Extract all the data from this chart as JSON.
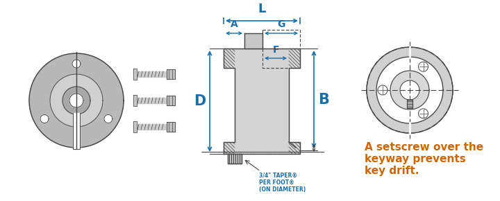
{
  "bg_color": "#ffffff",
  "text_color_blue": "#1a6ea8",
  "text_color_orange": "#cc6600",
  "line_color": "#444444",
  "setscrew_text_line1": "A setscrew over the",
  "setscrew_text_line2": "keyway prevents",
  "setscrew_text_line3": "key drift.",
  "taper_text_line1": "3/4\" TAPER®",
  "taper_text_line2": "PER FOOT®",
  "taper_text_line3": "(ON DIAMETER)"
}
